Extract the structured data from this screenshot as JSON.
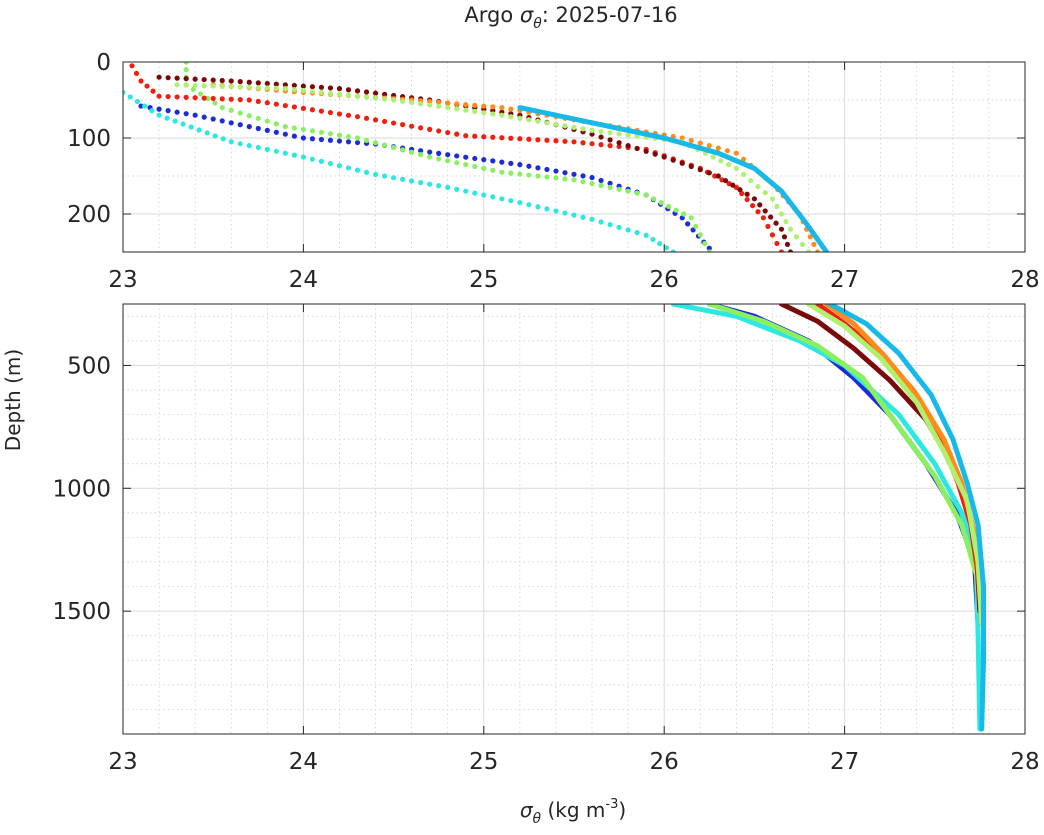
{
  "title": {
    "prefix": "Argo ",
    "sym": "σ",
    "sub": "θ",
    "suffix": ": 2025-07-16"
  },
  "ylabel": "Depth (m)",
  "xlabel": {
    "sym": "σ",
    "sub": "θ",
    "unit_pre": " (kg m",
    "unit_sup": "-3",
    "unit_post": ")"
  },
  "chart_data": [
    {
      "type": "scatter",
      "panel": "upper",
      "xlim": [
        23,
        28
      ],
      "ylim": [
        0,
        250
      ],
      "y_reversed": true,
      "grid": true,
      "minor_grid": true,
      "xticks": [
        23,
        24,
        25,
        26,
        27,
        28
      ],
      "yticks": [
        0,
        100,
        200
      ],
      "xtick_labels": [
        "23",
        "24",
        "25",
        "26",
        "27",
        "28"
      ],
      "ytick_labels": [
        "0",
        "100",
        "200"
      ],
      "series": [
        {
          "color": "#1e2bd8",
          "style": "dots",
          "points": [
            [
              23.1,
              58
            ],
            [
              23.4,
              70
            ],
            [
              23.7,
              85
            ],
            [
              24.0,
              100
            ],
            [
              24.4,
              108
            ],
            [
              24.8,
              122
            ],
            [
              25.2,
              135
            ],
            [
              25.6,
              152
            ],
            [
              25.9,
              175
            ],
            [
              26.1,
              205
            ],
            [
              26.25,
              245
            ]
          ]
        },
        {
          "color": "#2ce8e0",
          "style": "dots",
          "points": [
            [
              23.0,
              40
            ],
            [
              23.2,
              70
            ],
            [
              23.6,
              105
            ],
            [
              24.0,
              125
            ],
            [
              24.4,
              148
            ],
            [
              24.8,
              165
            ],
            [
              25.2,
              185
            ],
            [
              25.6,
              207
            ],
            [
              25.9,
              228
            ],
            [
              26.05,
              250
            ]
          ]
        },
        {
          "color": "#8af060",
          "style": "dots",
          "points": [
            [
              23.35,
              0
            ],
            [
              23.35,
              30
            ],
            [
              23.55,
              60
            ],
            [
              23.9,
              85
            ],
            [
              24.3,
              100
            ],
            [
              24.7,
              125
            ],
            [
              25.1,
              145
            ],
            [
              25.5,
              155
            ],
            [
              25.9,
              175
            ],
            [
              26.15,
              205
            ],
            [
              26.25,
              250
            ]
          ]
        },
        {
          "color": "#f02010",
          "style": "dots",
          "points": [
            [
              23.05,
              5
            ],
            [
              23.1,
              25
            ],
            [
              23.2,
              45
            ],
            [
              23.7,
              50
            ],
            [
              24.3,
              72
            ],
            [
              24.9,
              97
            ],
            [
              25.5,
              105
            ],
            [
              25.9,
              115
            ],
            [
              26.2,
              140
            ],
            [
              26.4,
              165
            ],
            [
              26.55,
              205
            ],
            [
              26.65,
              250
            ]
          ]
        },
        {
          "color": "#7a0a0a",
          "style": "dots",
          "points": [
            [
              23.2,
              20
            ],
            [
              23.6,
              25
            ],
            [
              24.2,
              35
            ],
            [
              24.7,
              50
            ],
            [
              25.2,
              70
            ],
            [
              25.6,
              95
            ],
            [
              26.0,
              125
            ],
            [
              26.3,
              150
            ],
            [
              26.5,
              180
            ],
            [
              26.65,
              220
            ],
            [
              26.7,
              250
            ]
          ]
        },
        {
          "color": "#ff8c1a",
          "style": "dots",
          "points": [
            [
              23.5,
              30
            ],
            [
              24.0,
              40
            ],
            [
              24.6,
              50
            ],
            [
              25.1,
              60
            ],
            [
              25.6,
              80
            ],
            [
              26.1,
              100
            ],
            [
              26.4,
              120
            ],
            [
              26.6,
              160
            ],
            [
              26.75,
              200
            ],
            [
              26.85,
              250
            ]
          ]
        },
        {
          "color": "#b0f070",
          "style": "dots",
          "points": [
            [
              23.3,
              30
            ],
            [
              23.9,
              35
            ],
            [
              24.5,
              50
            ],
            [
              25.1,
              70
            ],
            [
              25.6,
              90
            ],
            [
              26.1,
              105
            ],
            [
              26.4,
              140
            ],
            [
              26.6,
              180
            ],
            [
              26.7,
              220
            ],
            [
              26.8,
              250
            ]
          ]
        },
        {
          "color": "#18b8e8",
          "style": "line",
          "points": [
            [
              25.2,
              60
            ],
            [
              25.6,
              80
            ],
            [
              26.0,
              100
            ],
            [
              26.3,
              120
            ],
            [
              26.5,
              140
            ],
            [
              26.65,
              170
            ],
            [
              26.78,
              210
            ],
            [
              26.9,
              250
            ]
          ]
        }
      ]
    },
    {
      "type": "scatter",
      "panel": "lower",
      "xlim": [
        23,
        28
      ],
      "ylim": [
        250,
        2000
      ],
      "y_reversed": true,
      "grid": true,
      "minor_grid": true,
      "xticks": [
        23,
        24,
        25,
        26,
        27,
        28
      ],
      "yticks": [
        500,
        1000,
        1500
      ],
      "xtick_labels": [
        "23",
        "24",
        "25",
        "26",
        "27",
        "28"
      ],
      "ytick_labels": [
        "500",
        "1000",
        "1500"
      ],
      "series": [
        {
          "color": "#1e2bd8",
          "style": "line",
          "points": [
            [
              26.25,
              250
            ],
            [
              26.5,
              300
            ],
            [
              26.8,
              400
            ],
            [
              27.05,
              550
            ],
            [
              27.25,
              700
            ],
            [
              27.45,
              900
            ],
            [
              27.62,
              1100
            ],
            [
              27.72,
              1300
            ],
            [
              27.74,
              1550
            ]
          ]
        },
        {
          "color": "#2ce8e0",
          "style": "line",
          "points": [
            [
              26.05,
              250
            ],
            [
              26.4,
              300
            ],
            [
              26.75,
              400
            ],
            [
              27.0,
              500
            ],
            [
              27.3,
              700
            ],
            [
              27.5,
              900
            ],
            [
              27.65,
              1100
            ],
            [
              27.73,
              1300
            ],
            [
              27.74,
              1600
            ],
            [
              27.75,
              1980
            ]
          ]
        },
        {
          "color": "#8af060",
          "style": "line",
          "points": [
            [
              26.25,
              250
            ],
            [
              26.55,
              320
            ],
            [
              26.85,
              420
            ],
            [
              27.1,
              550
            ],
            [
              27.3,
              750
            ],
            [
              27.5,
              950
            ],
            [
              27.65,
              1150
            ],
            [
              27.73,
              1350
            ],
            [
              27.76,
              1550
            ]
          ]
        },
        {
          "color": "#7a0a0a",
          "style": "line",
          "points": [
            [
              26.65,
              250
            ],
            [
              26.85,
              320
            ],
            [
              27.05,
              430
            ],
            [
              27.25,
              560
            ],
            [
              27.45,
              720
            ],
            [
              27.58,
              880
            ],
            [
              27.67,
              1050
            ],
            [
              27.73,
              1250
            ],
            [
              27.75,
              1500
            ]
          ]
        },
        {
          "color": "#f02010",
          "style": "line",
          "points": [
            [
              26.85,
              250
            ],
            [
              27.0,
              330
            ],
            [
              27.2,
              450
            ],
            [
              27.38,
              600
            ],
            [
              27.52,
              780
            ],
            [
              27.63,
              980
            ],
            [
              27.7,
              1150
            ],
            [
              27.74,
              1350
            ],
            [
              27.76,
              1550
            ]
          ]
        },
        {
          "color": "#ff8c1a",
          "style": "line",
          "points": [
            [
              26.9,
              250
            ],
            [
              27.05,
              330
            ],
            [
              27.22,
              460
            ],
            [
              27.4,
              620
            ],
            [
              27.55,
              800
            ],
            [
              27.65,
              980
            ],
            [
              27.72,
              1180
            ],
            [
              27.76,
              1450
            ]
          ]
        },
        {
          "color": "#b0f070",
          "style": "line",
          "points": [
            [
              26.8,
              250
            ],
            [
              27.0,
              340
            ],
            [
              27.2,
              470
            ],
            [
              27.4,
              650
            ],
            [
              27.55,
              850
            ],
            [
              27.68,
              1050
            ],
            [
              27.74,
              1300
            ],
            [
              27.76,
              1550
            ]
          ]
        },
        {
          "color": "#18b8e8",
          "style": "line",
          "points": [
            [
              26.92,
              250
            ],
            [
              27.12,
              330
            ],
            [
              27.3,
              450
            ],
            [
              27.48,
              620
            ],
            [
              27.6,
              800
            ],
            [
              27.68,
              980
            ],
            [
              27.74,
              1150
            ],
            [
              27.77,
              1400
            ],
            [
              27.77,
              1700
            ],
            [
              27.76,
              1980
            ]
          ]
        }
      ]
    }
  ]
}
